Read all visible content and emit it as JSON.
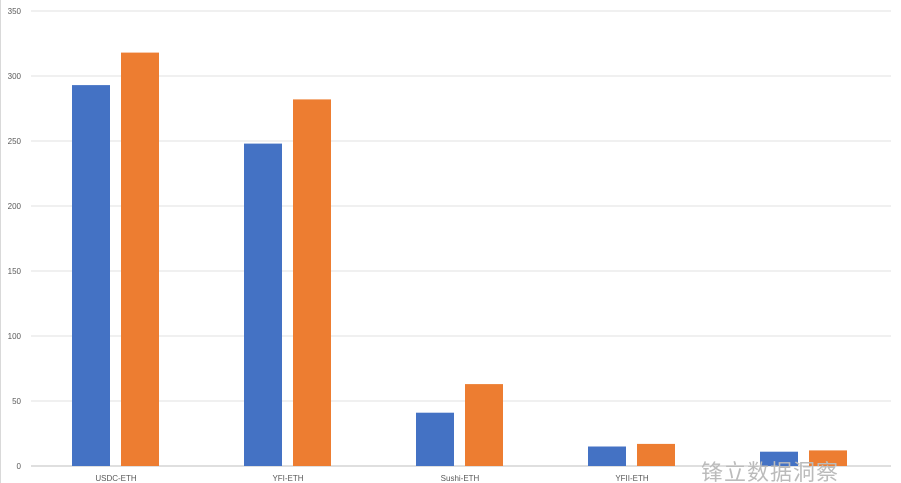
{
  "chart_data": {
    "type": "bar",
    "title": "",
    "xlabel": "",
    "ylabel": "",
    "categories": [
      "USDC-ETH",
      "YFI-ETH",
      "Sushi-ETH",
      "YFII-ETH",
      ""
    ],
    "series": [
      {
        "values": [
          293,
          248,
          41,
          15,
          11
        ],
        "color": "#4472C4"
      },
      {
        "values": [
          318,
          282,
          63,
          17,
          12
        ],
        "color": "#ED7D31"
      }
    ],
    "ylim": [
      0,
      350
    ],
    "yticks": [
      0,
      50,
      100,
      150,
      200,
      250,
      300,
      350
    ],
    "grid": true
  },
  "watermark": "锋立数据洞察"
}
